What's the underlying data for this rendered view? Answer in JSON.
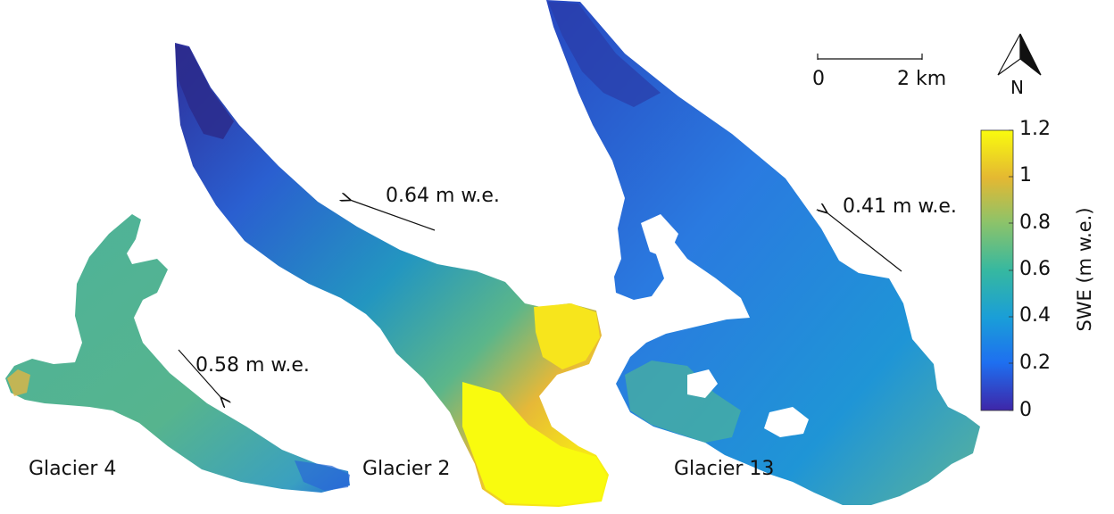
{
  "map": {
    "glaciers": [
      {
        "id": "g4",
        "name": "Glacier 4",
        "mean_swe": "0.58 m w.e."
      },
      {
        "id": "g2",
        "name": "Glacier 2",
        "mean_swe": "0.64 m w.e."
      },
      {
        "id": "g13",
        "name": "Glacier 13",
        "mean_swe": "0.41 m w.e."
      }
    ],
    "scale_bar": {
      "start_label": "0",
      "end_label": "2 km"
    },
    "north_arrow": {
      "label": "N"
    },
    "colorbar": {
      "title": "SWE (m w.e.)",
      "ticks": [
        "1.2",
        "1",
        "0.8",
        "0.6",
        "0.4",
        "0.2",
        "0"
      ],
      "range": [
        0,
        1.2
      ],
      "colors": [
        "#3e26a8",
        "#1e6ff0",
        "#1a9ed8",
        "#36b8a0",
        "#8cc36a",
        "#e4b832",
        "#f9fb0e"
      ]
    }
  }
}
